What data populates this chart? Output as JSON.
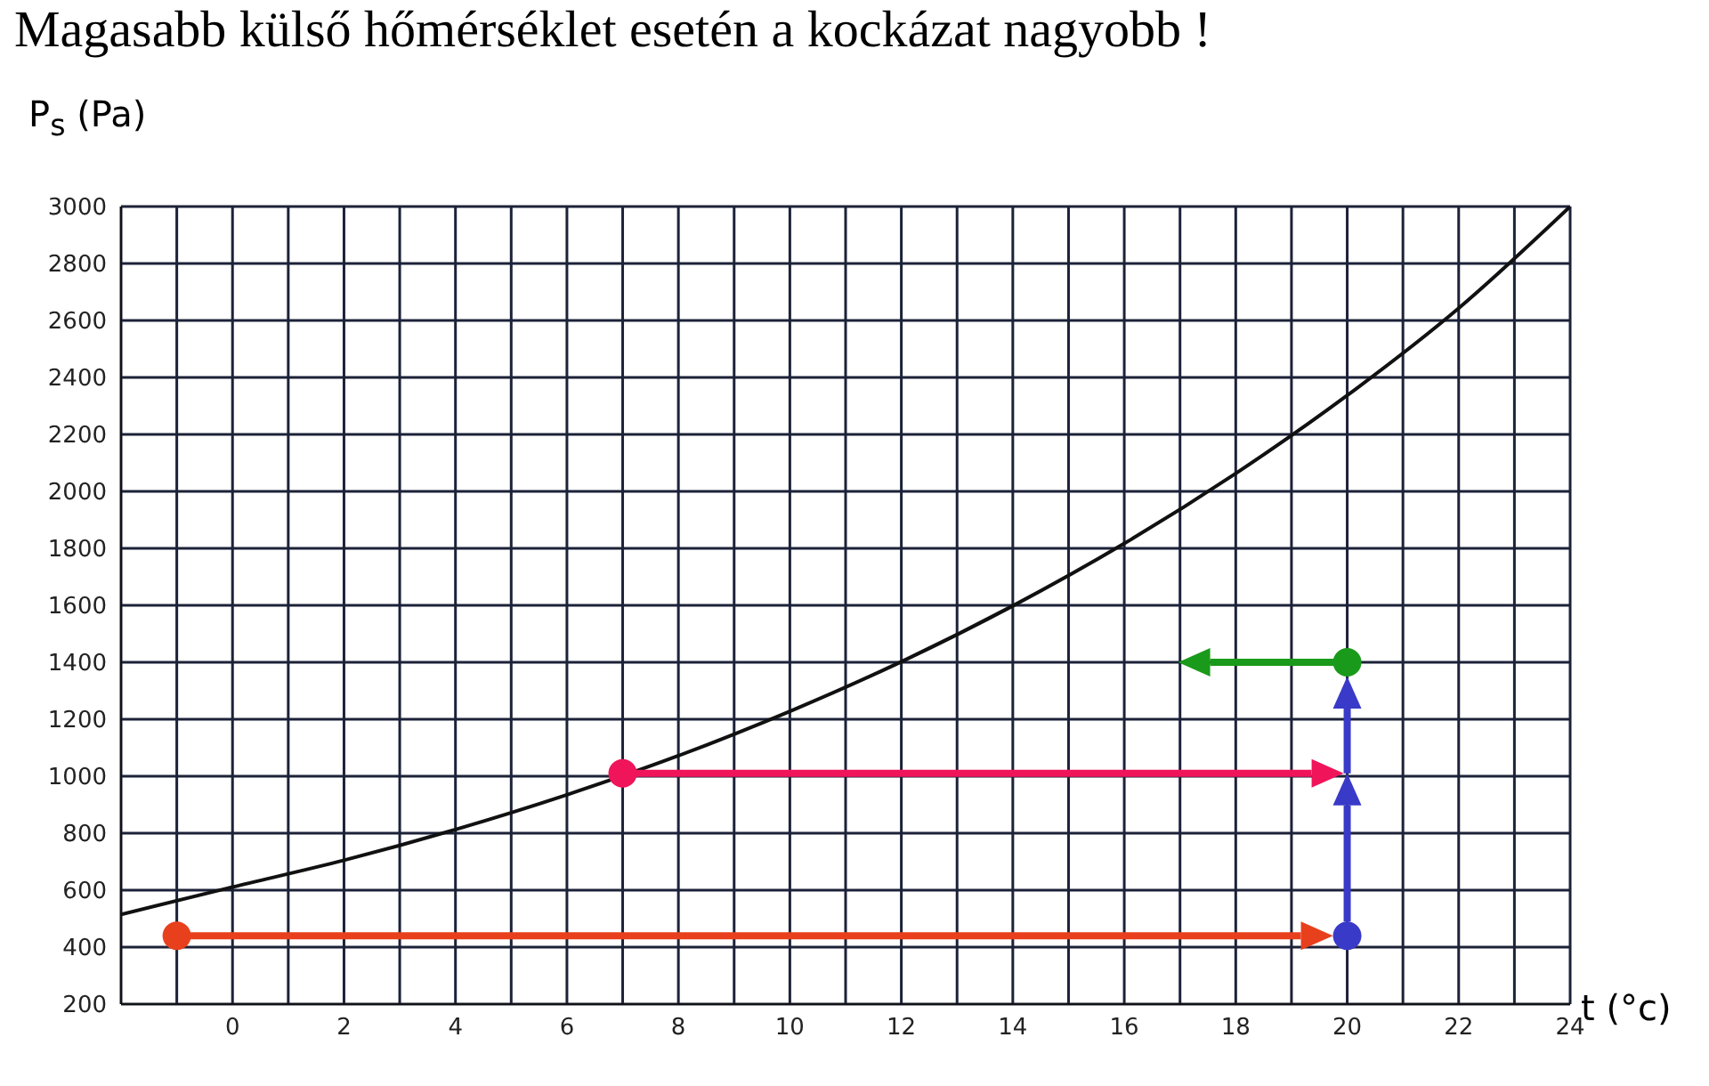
{
  "chart_data": {
    "type": "line",
    "title": "Magasabb külső hőmérséklet esetén a kockázat nagyobb !",
    "xlabel": "t (°c)",
    "ylabel": "P$_{s}$ (Pa)",
    "xlim": [
      -2,
      24
    ],
    "ylim": [
      200,
      3000
    ],
    "xticks": [
      {
        "value": -2,
        "label": null
      },
      {
        "value": -1,
        "label": null
      },
      0,
      {
        "value": 1,
        "label": null
      },
      2,
      {
        "value": 3,
        "label": null
      },
      4,
      {
        "value": 5,
        "label": null
      },
      6,
      {
        "value": 7,
        "label": null
      },
      8,
      {
        "value": 9,
        "label": null
      },
      10,
      {
        "value": 11,
        "label": null
      },
      12,
      {
        "value": 13,
        "label": null
      },
      14,
      {
        "value": 15,
        "label": null
      },
      16,
      {
        "value": 17,
        "label": null
      },
      18,
      {
        "value": 19,
        "label": null
      },
      20,
      {
        "value": 21,
        "label": null
      },
      22,
      {
        "value": 23,
        "label": null
      },
      24
    ],
    "yticks": [
      200,
      400,
      600,
      800,
      1000,
      1200,
      1400,
      1600,
      1800,
      2000,
      2200,
      2400,
      2600,
      2800,
      3000
    ],
    "grid": true,
    "marker": "none",
    "series": [
      {
        "color": "#111111",
        "x": [
          -2,
          0,
          2,
          4,
          6,
          8,
          10,
          12,
          14,
          16,
          18,
          20,
          22,
          24
        ],
        "values": [
          515,
          611,
          705,
          813,
          935,
          1072,
          1228,
          1402,
          1598,
          1817,
          2063,
          2337,
          2643,
          3000
        ]
      },
      {
        "type": "scatter",
        "color": "#e8401c",
        "marker": "circle",
        "x": [
          -1
        ],
        "values": [
          440
        ]
      },
      {
        "type": "scatter",
        "color": "#f0145a",
        "marker": "circle",
        "x": [
          7
        ],
        "values": [
          1010
        ]
      },
      {
        "type": "scatter",
        "color": "#3a3ac8",
        "marker": "circle",
        "x": [
          20
        ],
        "values": [
          440
        ]
      },
      {
        "type": "scatter",
        "color": "#1a9a1a",
        "marker": "circle",
        "x": [
          20
        ],
        "values": [
          1400
        ]
      }
    ]
  }
}
